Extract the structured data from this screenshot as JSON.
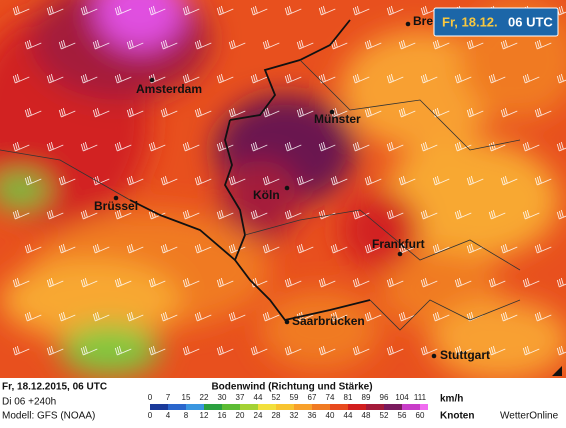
{
  "badge": {
    "date": "Fr, 18.12.",
    "time": "06 UTC"
  },
  "cities": [
    "Bre",
    "Amsterdam",
    "Münster",
    "Köln",
    "Brüssel",
    "Frankfurt",
    "Saarbrücken",
    "Stuttgart"
  ],
  "footer": {
    "datetime": "Fr, 18.12.2015, 06 UTC",
    "run": "Di 06 +240h",
    "model": "Modell: GFS (NOAA)"
  },
  "legend": {
    "title": "Bodenwind (Richtung und Stärke)",
    "kmh_unit": "km/h",
    "kmh": [
      0,
      7,
      15,
      22,
      30,
      37,
      44,
      52,
      59,
      67,
      74,
      81,
      89,
      96,
      104,
      111
    ],
    "knots_unit": "Knoten",
    "knots": [
      0,
      4,
      8,
      12,
      16,
      20,
      24,
      28,
      32,
      36,
      40,
      44,
      48,
      52,
      56,
      60
    ],
    "colors": [
      "#1a3a9a",
      "#2a66cc",
      "#3a96e0",
      "#2aa040",
      "#5cbc34",
      "#a4d234",
      "#f2e03c",
      "#f8c430",
      "#f8a02a",
      "#f07a22",
      "#e84a1e",
      "#d21e1e",
      "#a41a3a",
      "#7a1a5e",
      "#c83cc8",
      "#f06cf0"
    ]
  },
  "brand": "WetterOnline"
}
